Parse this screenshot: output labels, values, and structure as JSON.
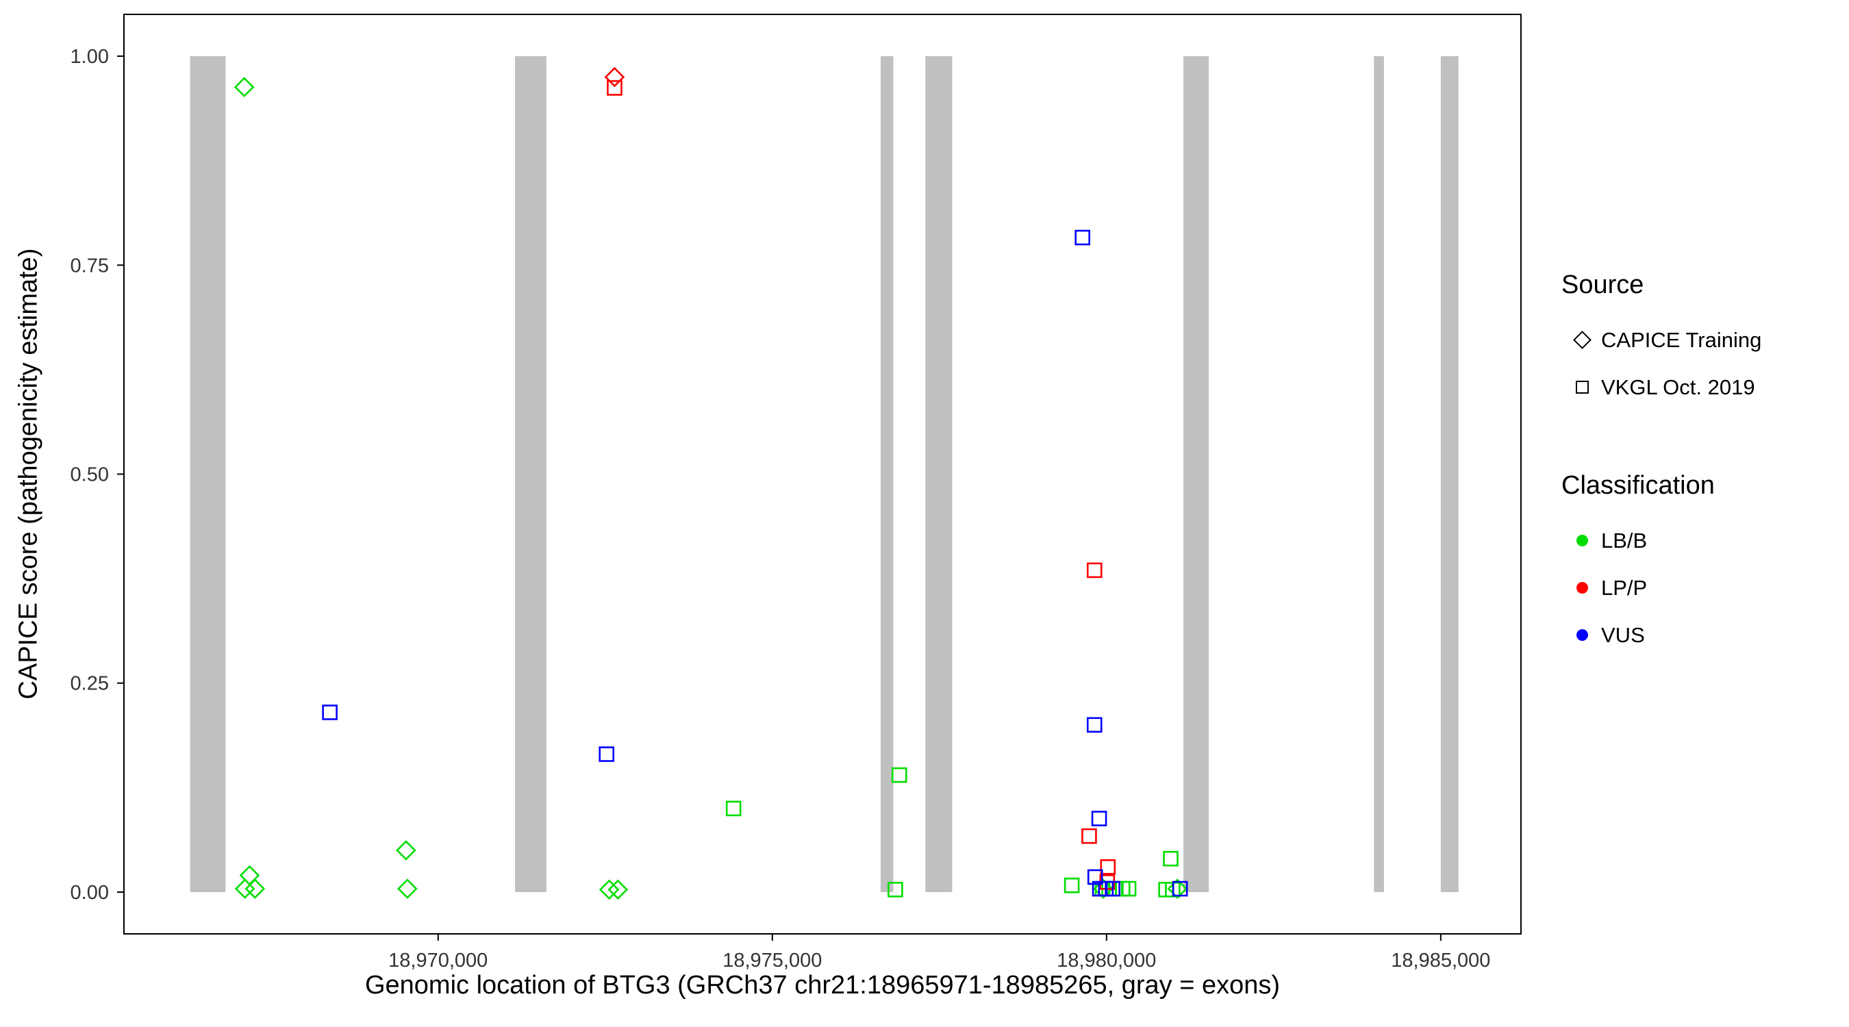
{
  "colors": {
    "lbb": "#00dd00",
    "lpp": "#ff0000",
    "vus": "#0000ff",
    "exon": "#c0c0c0",
    "panel_border": "#000000",
    "tick_label": "#333333"
  },
  "chart_data": {
    "type": "scatter",
    "title": "",
    "xlabel": "Genomic location of BTG3 (GRCh37 chr21:18965971-18985265, gray = exons)",
    "ylabel": "CAPICE score (pathogenicity estimate)",
    "xlim": [
      18965300,
      18986200
    ],
    "ylim": [
      -0.05,
      1.05
    ],
    "grid": "off",
    "legend_position": "right",
    "x_ticks": [
      {
        "value": 18970000,
        "label": "18,970,000"
      },
      {
        "value": 18975000,
        "label": "18,975,000"
      },
      {
        "value": 18980000,
        "label": "18,980,000"
      },
      {
        "value": 18985000,
        "label": "18,985,000"
      }
    ],
    "y_ticks": [
      {
        "value": 0.0,
        "label": "0.00"
      },
      {
        "value": 0.25,
        "label": "0.25"
      },
      {
        "value": 0.5,
        "label": "0.50"
      },
      {
        "value": 0.75,
        "label": "0.75"
      },
      {
        "value": 1.0,
        "label": "1.00"
      }
    ],
    "exon_y_range": [
      0,
      1
    ],
    "exons": [
      [
        18966290,
        18966820
      ],
      [
        18971150,
        18971620
      ],
      [
        18976620,
        18976810
      ],
      [
        18977290,
        18977690
      ],
      [
        18981150,
        18981530
      ],
      [
        18984000,
        18984150
      ],
      [
        18985000,
        18985265
      ]
    ],
    "series": [
      {
        "name": "CAPICE Training / LB/B",
        "source": "CAPICE Training",
        "classification": "LB/B",
        "shape": "diamond",
        "color": "lbb",
        "points": [
          [
            18967100,
            0.963
          ],
          [
            18967180,
            0.02
          ],
          [
            18967110,
            0.004
          ],
          [
            18967260,
            0.004
          ],
          [
            18969520,
            0.05
          ],
          [
            18969540,
            0.004
          ],
          [
            18972560,
            0.003
          ],
          [
            18972690,
            0.003
          ],
          [
            18979950,
            0.004
          ],
          [
            18981060,
            0.004
          ]
        ]
      },
      {
        "name": "CAPICE Training / LP/P",
        "source": "CAPICE Training",
        "classification": "LP/P",
        "shape": "diamond",
        "color": "lpp",
        "points": [
          [
            18972640,
            0.975
          ]
        ]
      },
      {
        "name": "VKGL Oct. 2019 / LB/B",
        "source": "VKGL Oct. 2019",
        "classification": "LB/B",
        "shape": "square",
        "color": "lbb",
        "points": [
          [
            18974420,
            0.1
          ],
          [
            18976900,
            0.14
          ],
          [
            18976840,
            0.003
          ],
          [
            18979480,
            0.008
          ],
          [
            18979940,
            0.004
          ],
          [
            18980040,
            0.004
          ],
          [
            18980140,
            0.004
          ],
          [
            18980240,
            0.004
          ],
          [
            18980330,
            0.004
          ],
          [
            18980960,
            0.04
          ],
          [
            18980890,
            0.003
          ],
          [
            18980990,
            0.003
          ]
        ]
      },
      {
        "name": "VKGL Oct. 2019 / LP/P",
        "source": "VKGL Oct. 2019",
        "classification": "LP/P",
        "shape": "square",
        "color": "lpp",
        "points": [
          [
            18972640,
            0.962
          ],
          [
            18979820,
            0.385
          ],
          [
            18979740,
            0.067
          ],
          [
            18980020,
            0.03
          ],
          [
            18980010,
            0.012
          ]
        ]
      },
      {
        "name": "VKGL Oct. 2019 / VUS",
        "source": "VKGL Oct. 2019",
        "classification": "VUS",
        "shape": "square",
        "color": "vus",
        "points": [
          [
            18968380,
            0.215
          ],
          [
            18972520,
            0.165
          ],
          [
            18979640,
            0.783
          ],
          [
            18979820,
            0.2
          ],
          [
            18979890,
            0.088
          ],
          [
            18979830,
            0.018
          ],
          [
            18979900,
            0.004
          ],
          [
            18979990,
            0.004
          ],
          [
            18980090,
            0.004
          ],
          [
            18981100,
            0.004
          ]
        ]
      }
    ]
  },
  "legend": {
    "source": {
      "title": "Source",
      "items": [
        {
          "label": "CAPICE Training",
          "shape": "diamond"
        },
        {
          "label": "VKGL Oct. 2019",
          "shape": "square"
        }
      ]
    },
    "classification": {
      "title": "Classification",
      "items": [
        {
          "label": "LB/B",
          "color_key": "lbb"
        },
        {
          "label": "LP/P",
          "color_key": "lpp"
        },
        {
          "label": "VUS",
          "color_key": "vus"
        }
      ]
    }
  }
}
